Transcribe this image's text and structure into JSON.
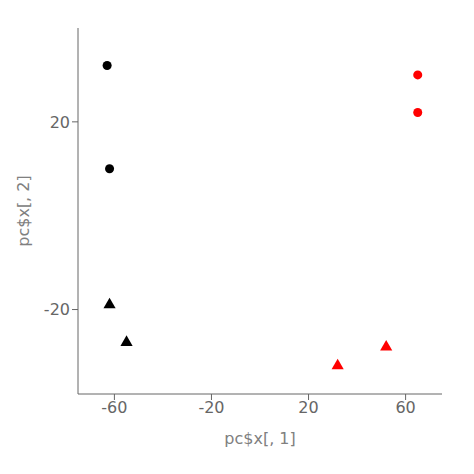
{
  "chart_data": {
    "type": "scatter",
    "xlabel": "pc$x[, 1]",
    "ylabel": "pc$x[, 2]",
    "xlim": [
      -75,
      75
    ],
    "ylim": [
      -38,
      40
    ],
    "xticks": [
      -60,
      -20,
      20,
      60
    ],
    "yticks": [
      -20,
      20
    ],
    "grid": false,
    "series": [
      {
        "color": "#000000",
        "marker": "circle",
        "x": [
          -63,
          -62
        ],
        "y": [
          32,
          10
        ]
      },
      {
        "color": "#000000",
        "marker": "triangle",
        "x": [
          -62,
          -55
        ],
        "y": [
          -19,
          -27
        ]
      },
      {
        "color": "#FF0000",
        "marker": "circle",
        "x": [
          65,
          65
        ],
        "y": [
          30,
          22
        ]
      },
      {
        "color": "#FF0000",
        "marker": "triangle",
        "x": [
          32,
          52
        ],
        "y": [
          -32,
          -28
        ]
      }
    ]
  }
}
